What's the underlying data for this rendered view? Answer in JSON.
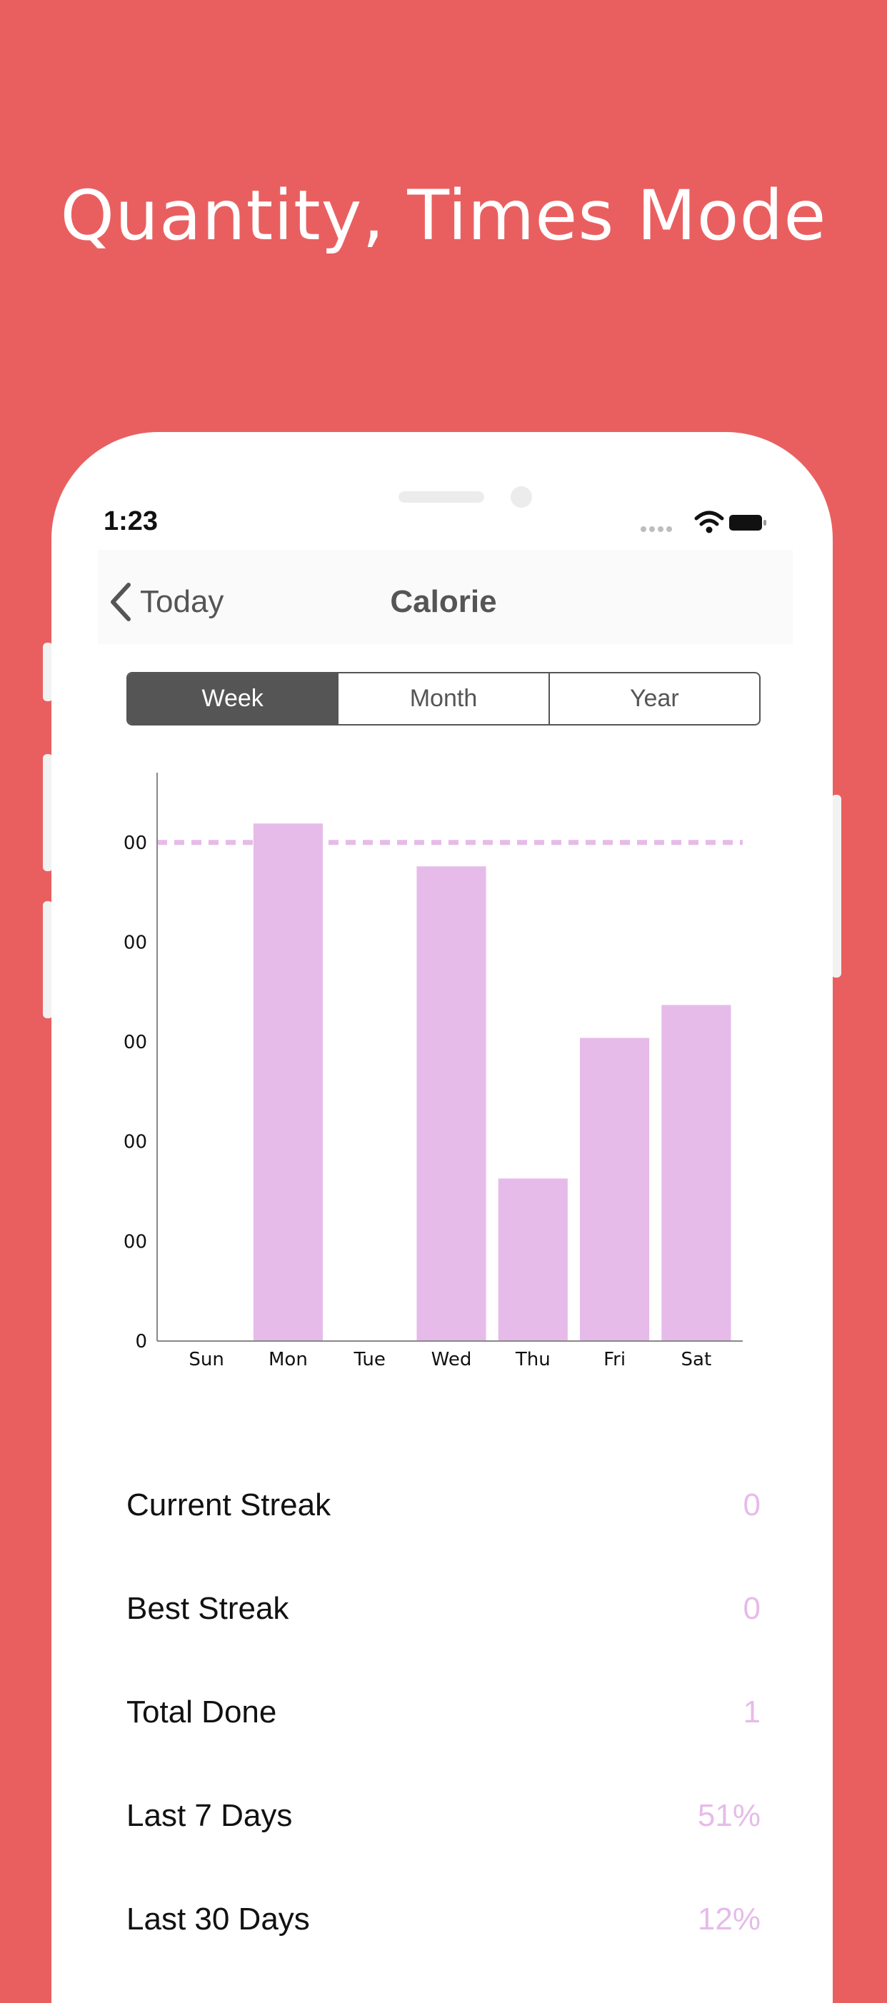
{
  "headline": "Quantity, Times Mode",
  "status_bar": {
    "time": "1:23",
    "icons": [
      "signal-dots-icon",
      "wifi-icon",
      "battery-icon"
    ]
  },
  "nav": {
    "back_label": "Today",
    "title": "Calorie",
    "back_icon": "chevron-left-icon"
  },
  "segments": [
    {
      "label": "Week",
      "active": true
    },
    {
      "label": "Month",
      "active": false
    },
    {
      "label": "Year",
      "active": false
    }
  ],
  "colors": {
    "background": "#e95f60",
    "bar": "#e6bbe9",
    "accent_text": "#555555",
    "value_text": "#e6bbe9"
  },
  "chart_data": {
    "type": "bar",
    "categories": [
      "Sun",
      "Mon",
      "Tue",
      "Wed",
      "Thu",
      "Fri",
      "Sat"
    ],
    "values": [
      0,
      519,
      0,
      476,
      163,
      304,
      337
    ],
    "y_tick_labels": [
      "0",
      "00",
      "00",
      "00",
      "00",
      "00"
    ],
    "y_tick_values": [
      0,
      100,
      200,
      300,
      400,
      500
    ],
    "goal_line": 500,
    "ylim": [
      0,
      570
    ],
    "grid": false
  },
  "stats": [
    {
      "label": "Current Streak",
      "value": "0"
    },
    {
      "label": "Best Streak",
      "value": "0"
    },
    {
      "label": "Total Done",
      "value": "1"
    },
    {
      "label": "Last 7 Days",
      "value": "51%"
    },
    {
      "label": "Last 30 Days",
      "value": "12%"
    }
  ]
}
